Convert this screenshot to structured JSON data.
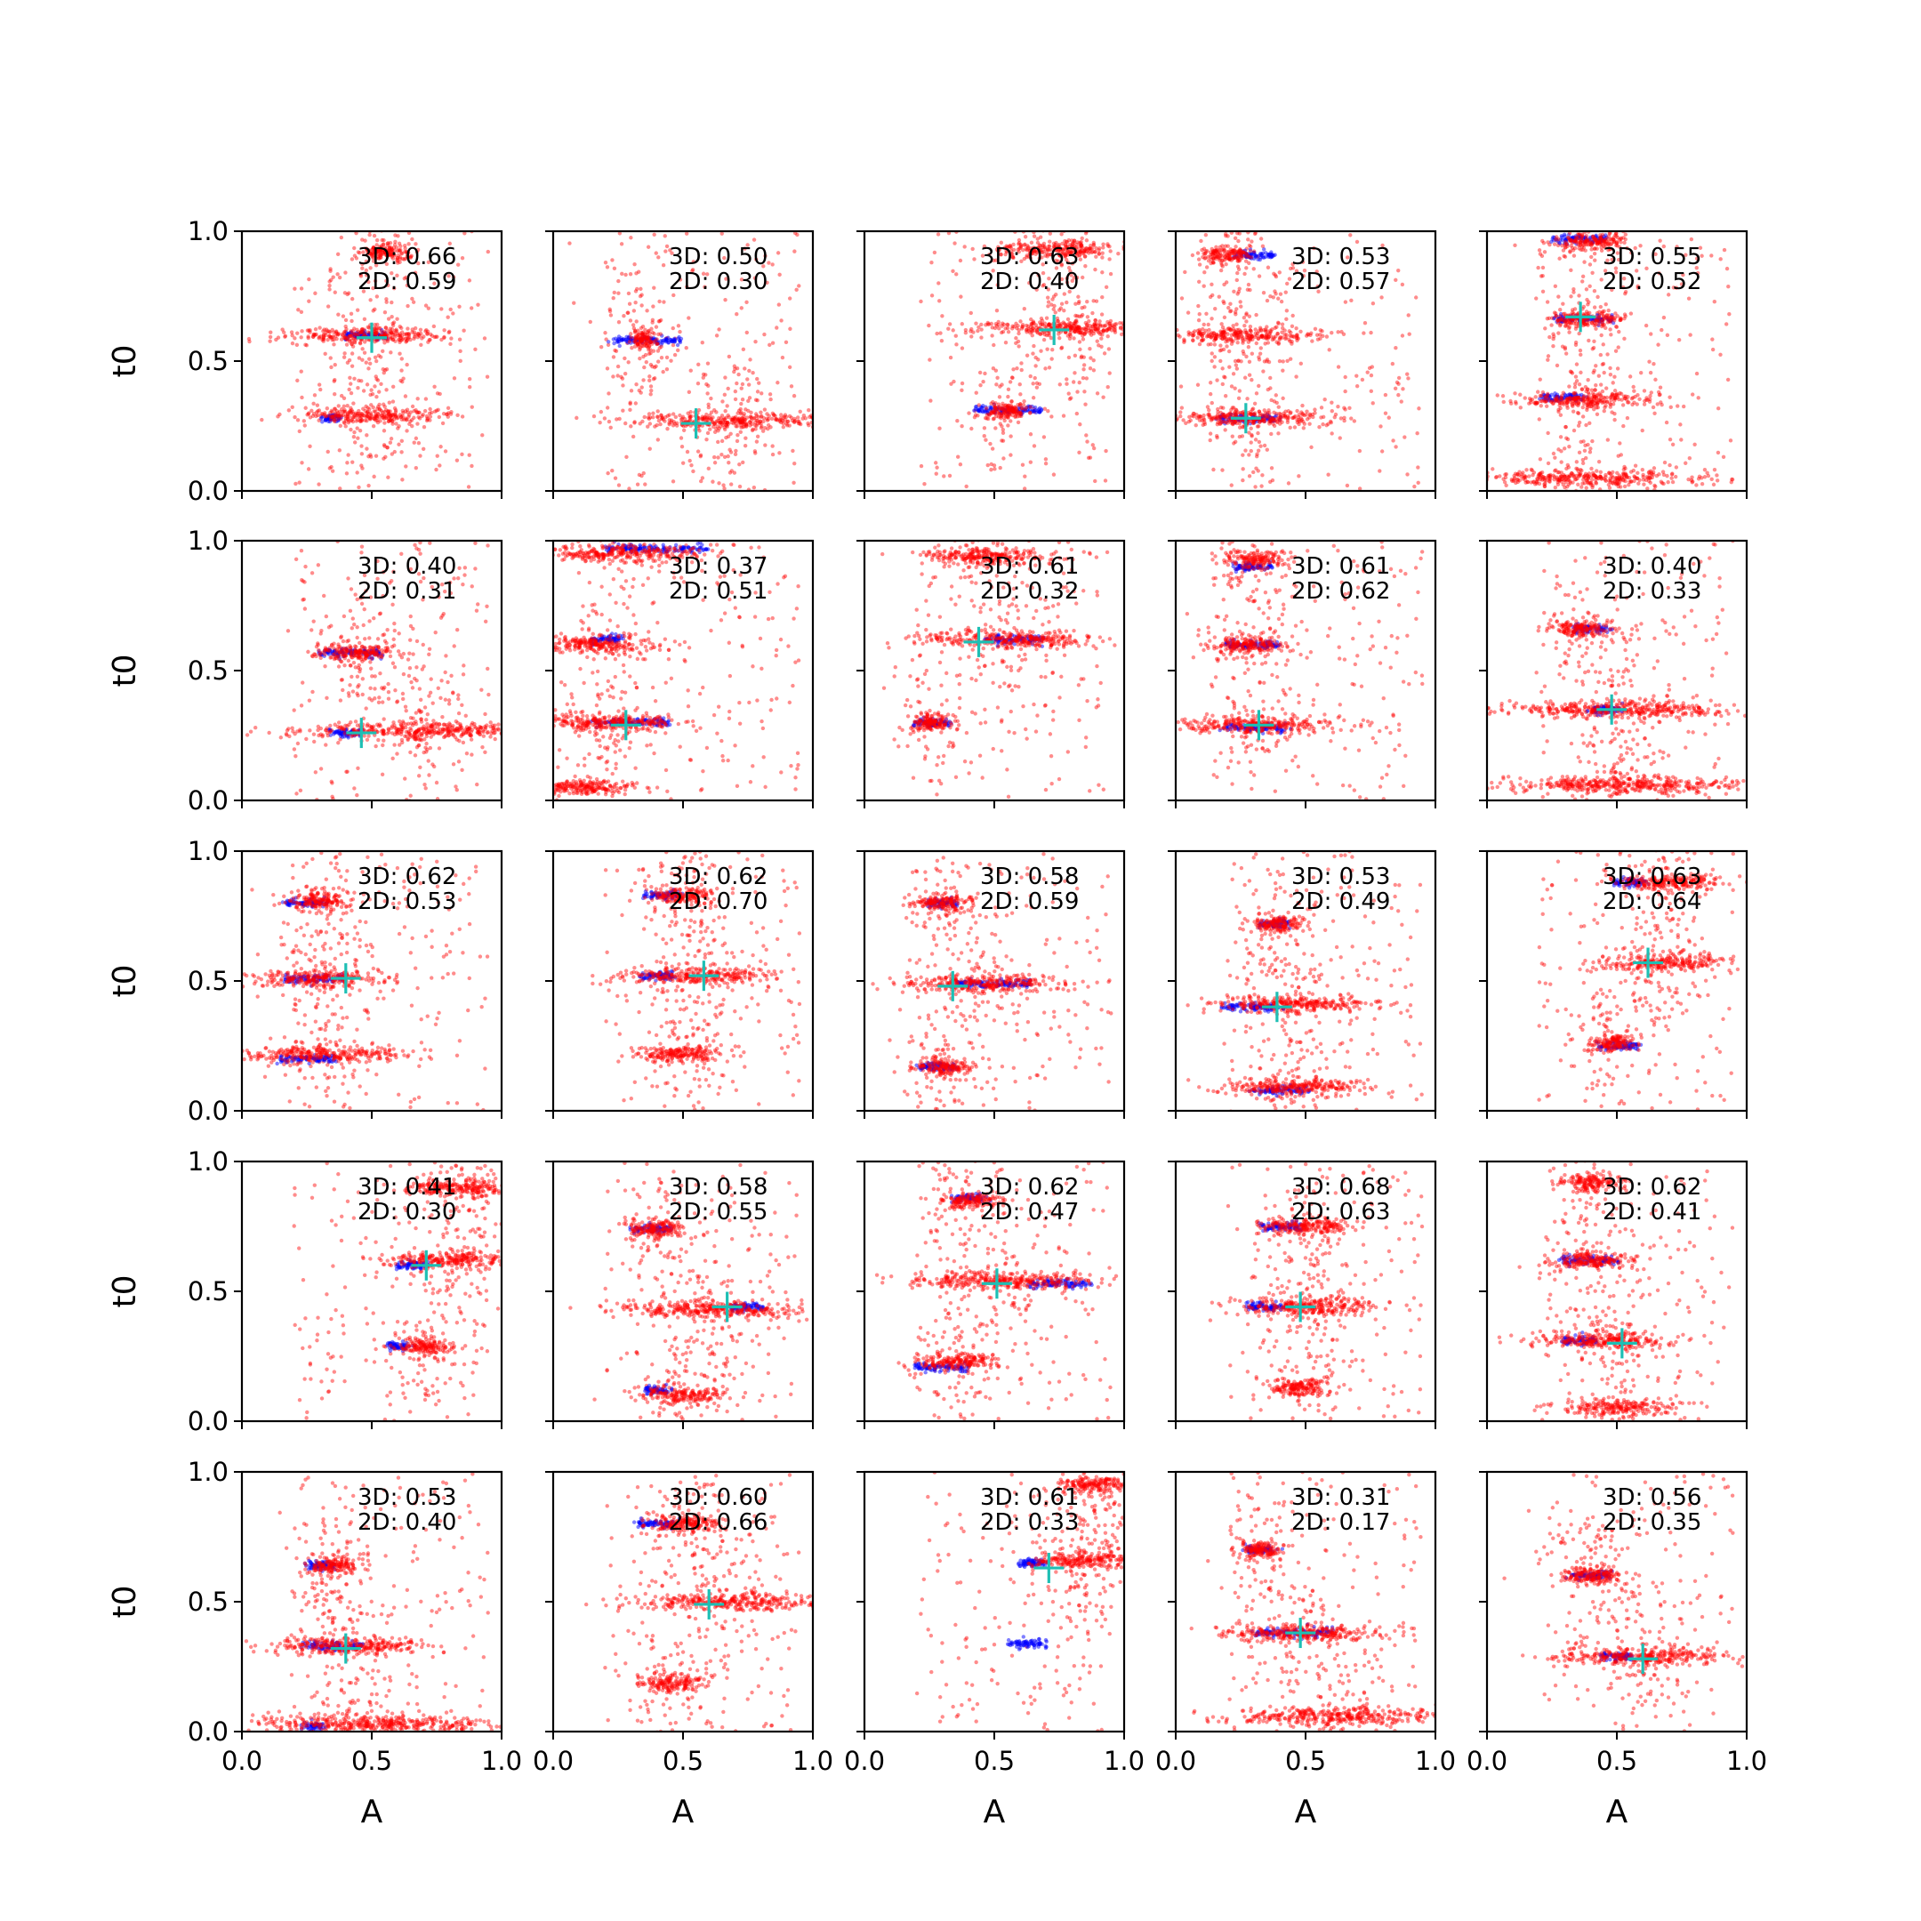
{
  "figure": {
    "rows": 5,
    "cols": 5,
    "xlabel": "A",
    "ylabel": "t0",
    "xticks": [
      "0.0",
      "0.5",
      "1.0"
    ],
    "yticks": [
      "0.0",
      "0.5",
      "1.0"
    ],
    "colors": {
      "red_points": "#ff0000",
      "blue_points": "#0000ff",
      "marker": "#1ebfb4",
      "axes": "#000000"
    }
  },
  "chart_data": [
    {
      "type": "scatter",
      "panel": 1,
      "annotation": [
        "3D: 0.66",
        "2D: 0.59"
      ],
      "marker": [
        0.5,
        0.59
      ],
      "red_clusters": [
        [
          0.48,
          0.6,
          0.38
        ],
        [
          0.5,
          0.29,
          0.34
        ],
        [
          0.55,
          0.92,
          0.12
        ]
      ],
      "blue_clusters": [
        [
          0.47,
          0.6,
          0.14
        ],
        [
          0.35,
          0.28,
          0.05
        ]
      ],
      "xlim": [
        0,
        1
      ],
      "ylim": [
        0,
        1
      ]
    },
    {
      "type": "scatter",
      "panel": 2,
      "annotation": [
        "3D: 0.50",
        "2D: 0.30"
      ],
      "marker": [
        0.55,
        0.26
      ],
      "red_clusters": [
        [
          0.7,
          0.27,
          0.46
        ],
        [
          0.35,
          0.58,
          0.06
        ]
      ],
      "blue_clusters": [
        [
          0.36,
          0.58,
          0.24
        ]
      ],
      "xlim": [
        0,
        1
      ],
      "ylim": [
        0,
        1
      ]
    },
    {
      "type": "scatter",
      "panel": 3,
      "annotation": [
        "3D: 0.63",
        "2D: 0.40"
      ],
      "marker": [
        0.73,
        0.62
      ],
      "red_clusters": [
        [
          0.78,
          0.63,
          0.44
        ],
        [
          0.75,
          0.93,
          0.28
        ],
        [
          0.55,
          0.31,
          0.1
        ]
      ],
      "blue_clusters": [
        [
          0.55,
          0.31,
          0.24
        ]
      ],
      "xlim": [
        0,
        1
      ],
      "ylim": [
        0,
        1
      ]
    },
    {
      "type": "scatter",
      "panel": 4,
      "annotation": [
        "3D: 0.53",
        "2D: 0.57"
      ],
      "marker": [
        0.27,
        0.28
      ],
      "red_clusters": [
        [
          0.25,
          0.6,
          0.36
        ],
        [
          0.28,
          0.28,
          0.4
        ],
        [
          0.2,
          0.91,
          0.12
        ]
      ],
      "blue_clusters": [
        [
          0.28,
          0.28,
          0.2
        ],
        [
          0.3,
          0.91,
          0.14
        ]
      ],
      "xlim": [
        0,
        1
      ],
      "ylim": [
        0,
        1
      ]
    },
    {
      "type": "scatter",
      "panel": 5,
      "annotation": [
        "3D: 0.55",
        "2D: 0.52"
      ],
      "marker": [
        0.36,
        0.67
      ],
      "red_clusters": [
        [
          0.38,
          0.35,
          0.32
        ],
        [
          0.38,
          0.05,
          0.5
        ],
        [
          0.37,
          0.66,
          0.18
        ],
        [
          0.4,
          0.96,
          0.18
        ]
      ],
      "blue_clusters": [
        [
          0.37,
          0.66,
          0.2
        ],
        [
          0.35,
          0.97,
          0.18
        ],
        [
          0.3,
          0.36,
          0.14
        ]
      ],
      "xlim": [
        0,
        1
      ],
      "ylim": [
        0,
        1
      ]
    },
    {
      "type": "scatter",
      "panel": 6,
      "annotation": [
        "3D: 0.40",
        "2D: 0.31"
      ],
      "marker": [
        0.46,
        0.26
      ],
      "red_clusters": [
        [
          0.68,
          0.27,
          0.58
        ],
        [
          0.45,
          0.57,
          0.18
        ]
      ],
      "blue_clusters": [
        [
          0.42,
          0.57,
          0.22
        ],
        [
          0.4,
          0.26,
          0.1
        ]
      ],
      "xlim": [
        0,
        1
      ],
      "ylim": [
        0,
        1
      ]
    },
    {
      "type": "scatter",
      "panel": 7,
      "annotation": [
        "3D: 0.37",
        "2D: 0.51"
      ],
      "marker": [
        0.28,
        0.29
      ],
      "red_clusters": [
        [
          0.2,
          0.3,
          0.4
        ],
        [
          0.15,
          0.6,
          0.3
        ],
        [
          0.25,
          0.95,
          0.4
        ],
        [
          0.1,
          0.05,
          0.3
        ]
      ],
      "blue_clusters": [
        [
          0.3,
          0.3,
          0.26
        ],
        [
          0.4,
          0.97,
          0.34
        ],
        [
          0.2,
          0.62,
          0.1
        ]
      ],
      "xlim": [
        0,
        1
      ],
      "ylim": [
        0,
        1
      ]
    },
    {
      "type": "scatter",
      "panel": 8,
      "annotation": [
        "3D: 0.61",
        "2D: 0.32"
      ],
      "marker": [
        0.44,
        0.61
      ],
      "red_clusters": [
        [
          0.55,
          0.62,
          0.4
        ],
        [
          0.45,
          0.94,
          0.3
        ],
        [
          0.25,
          0.3,
          0.1
        ]
      ],
      "blue_clusters": [
        [
          0.58,
          0.62,
          0.2
        ],
        [
          0.26,
          0.3,
          0.12
        ]
      ],
      "xlim": [
        0,
        1
      ],
      "ylim": [
        0,
        1
      ]
    },
    {
      "type": "scatter",
      "panel": 9,
      "annotation": [
        "3D: 0.61",
        "2D: 0.62"
      ],
      "marker": [
        0.32,
        0.29
      ],
      "red_clusters": [
        [
          0.3,
          0.29,
          0.4
        ],
        [
          0.27,
          0.6,
          0.18
        ],
        [
          0.3,
          0.93,
          0.14
        ]
      ],
      "blue_clusters": [
        [
          0.3,
          0.28,
          0.22
        ],
        [
          0.3,
          0.6,
          0.18
        ],
        [
          0.3,
          0.9,
          0.14
        ]
      ],
      "xlim": [
        0,
        1
      ],
      "ylim": [
        0,
        1
      ]
    },
    {
      "type": "scatter",
      "panel": 10,
      "annotation": [
        "3D: 0.40",
        "2D: 0.33"
      ],
      "marker": [
        0.48,
        0.35
      ],
      "red_clusters": [
        [
          0.52,
          0.35,
          0.52
        ],
        [
          0.52,
          0.06,
          0.58
        ],
        [
          0.37,
          0.66,
          0.14
        ]
      ],
      "blue_clusters": [
        [
          0.4,
          0.66,
          0.12
        ],
        [
          0.45,
          0.35,
          0.1
        ]
      ],
      "xlim": [
        0,
        1
      ],
      "ylim": [
        0,
        1
      ]
    },
    {
      "type": "scatter",
      "panel": 11,
      "annotation": [
        "3D: 0.62",
        "2D: 0.53"
      ],
      "marker": [
        0.4,
        0.51
      ],
      "red_clusters": [
        [
          0.3,
          0.51,
          0.28
        ],
        [
          0.3,
          0.22,
          0.36
        ],
        [
          0.3,
          0.81,
          0.14
        ]
      ],
      "blue_clusters": [
        [
          0.28,
          0.51,
          0.22
        ],
        [
          0.25,
          0.2,
          0.2
        ],
        [
          0.25,
          0.8,
          0.14
        ]
      ],
      "xlim": [
        0,
        1
      ],
      "ylim": [
        0,
        1
      ]
    },
    {
      "type": "scatter",
      "panel": 12,
      "annotation": [
        "3D: 0.62",
        "2D: 0.70"
      ],
      "marker": [
        0.58,
        0.52
      ],
      "red_clusters": [
        [
          0.55,
          0.52,
          0.36
        ],
        [
          0.5,
          0.22,
          0.2
        ],
        [
          0.5,
          0.83,
          0.14
        ]
      ],
      "blue_clusters": [
        [
          0.4,
          0.52,
          0.12
        ],
        [
          0.42,
          0.83,
          0.12
        ]
      ],
      "xlim": [
        0,
        1
      ],
      "ylim": [
        0,
        1
      ]
    },
    {
      "type": "scatter",
      "panel": 13,
      "annotation": [
        "3D: 0.58",
        "2D: 0.59"
      ],
      "marker": [
        0.34,
        0.48
      ],
      "red_clusters": [
        [
          0.45,
          0.49,
          0.36
        ],
        [
          0.3,
          0.8,
          0.14
        ],
        [
          0.3,
          0.17,
          0.14
        ]
      ],
      "blue_clusters": [
        [
          0.5,
          0.49,
          0.26
        ],
        [
          0.3,
          0.8,
          0.1
        ],
        [
          0.28,
          0.17,
          0.12
        ]
      ],
      "xlim": [
        0,
        1
      ],
      "ylim": [
        0,
        1
      ]
    },
    {
      "type": "scatter",
      "panel": 14,
      "annotation": [
        "3D: 0.53",
        "2D: 0.49"
      ],
      "marker": [
        0.39,
        0.4
      ],
      "red_clusters": [
        [
          0.45,
          0.41,
          0.4
        ],
        [
          0.45,
          0.09,
          0.34
        ],
        [
          0.4,
          0.72,
          0.12
        ]
      ],
      "blue_clusters": [
        [
          0.3,
          0.4,
          0.2
        ],
        [
          0.4,
          0.08,
          0.2
        ],
        [
          0.38,
          0.72,
          0.1
        ]
      ],
      "xlim": [
        0,
        1
      ],
      "ylim": [
        0,
        1
      ]
    },
    {
      "type": "scatter",
      "panel": 15,
      "annotation": [
        "3D: 0.63",
        "2D: 0.64"
      ],
      "marker": [
        0.62,
        0.57
      ],
      "red_clusters": [
        [
          0.68,
          0.57,
          0.3
        ],
        [
          0.7,
          0.88,
          0.28
        ],
        [
          0.48,
          0.26,
          0.1
        ]
      ],
      "blue_clusters": [
        [
          0.5,
          0.25,
          0.14
        ],
        [
          0.55,
          0.88,
          0.1
        ]
      ],
      "xlim": [
        0,
        1
      ],
      "ylim": [
        0,
        1
      ]
    },
    {
      "type": "scatter",
      "panel": 16,
      "annotation": [
        "3D: 0.41",
        "2D: 0.30"
      ],
      "marker": [
        0.71,
        0.6
      ],
      "red_clusters": [
        [
          0.8,
          0.62,
          0.3
        ],
        [
          0.85,
          0.9,
          0.28
        ],
        [
          0.7,
          0.29,
          0.12
        ]
      ],
      "blue_clusters": [
        [
          0.65,
          0.6,
          0.1
        ],
        [
          0.6,
          0.29,
          0.06
        ]
      ],
      "xlim": [
        0,
        1
      ],
      "ylim": [
        0,
        1
      ]
    },
    {
      "type": "scatter",
      "panel": 17,
      "annotation": [
        "3D: 0.58",
        "2D: 0.55"
      ],
      "marker": [
        0.67,
        0.44
      ],
      "red_clusters": [
        [
          0.6,
          0.43,
          0.44
        ],
        [
          0.4,
          0.74,
          0.14
        ],
        [
          0.5,
          0.1,
          0.2
        ]
      ],
      "blue_clusters": [
        [
          0.38,
          0.74,
          0.14
        ],
        [
          0.75,
          0.44,
          0.12
        ],
        [
          0.4,
          0.12,
          0.08
        ]
      ],
      "xlim": [
        0,
        1
      ],
      "ylim": [
        0,
        1
      ]
    },
    {
      "type": "scatter",
      "panel": 18,
      "annotation": [
        "3D: 0.62",
        "2D: 0.47"
      ],
      "marker": [
        0.51,
        0.53
      ],
      "red_clusters": [
        [
          0.55,
          0.54,
          0.46
        ],
        [
          0.35,
          0.23,
          0.2
        ],
        [
          0.4,
          0.85,
          0.14
        ]
      ],
      "blue_clusters": [
        [
          0.75,
          0.53,
          0.2
        ],
        [
          0.3,
          0.21,
          0.18
        ],
        [
          0.4,
          0.86,
          0.1
        ]
      ],
      "xlim": [
        0,
        1
      ],
      "ylim": [
        0,
        1
      ]
    },
    {
      "type": "scatter",
      "panel": 19,
      "annotation": [
        "3D: 0.68",
        "2D: 0.63"
      ],
      "marker": [
        0.48,
        0.44
      ],
      "red_clusters": [
        [
          0.5,
          0.44,
          0.36
        ],
        [
          0.5,
          0.75,
          0.22
        ],
        [
          0.48,
          0.13,
          0.14
        ]
      ],
      "blue_clusters": [
        [
          0.35,
          0.44,
          0.14
        ],
        [
          0.4,
          0.75,
          0.14
        ]
      ],
      "xlim": [
        0,
        1
      ],
      "ylim": [
        0,
        1
      ]
    },
    {
      "type": "scatter",
      "panel": 20,
      "annotation": [
        "3D: 0.62",
        "2D: 0.41"
      ],
      "marker": [
        0.52,
        0.3
      ],
      "red_clusters": [
        [
          0.45,
          0.31,
          0.32
        ],
        [
          0.4,
          0.62,
          0.2
        ],
        [
          0.5,
          0.05,
          0.24
        ],
        [
          0.4,
          0.92,
          0.16
        ]
      ],
      "blue_clusters": [
        [
          0.4,
          0.62,
          0.2
        ],
        [
          0.35,
          0.31,
          0.12
        ]
      ],
      "xlim": [
        0,
        1
      ],
      "ylim": [
        0,
        1
      ]
    },
    {
      "type": "scatter",
      "panel": 21,
      "annotation": [
        "3D: 0.53",
        "2D: 0.40"
      ],
      "marker": [
        0.4,
        0.32
      ],
      "red_clusters": [
        [
          0.4,
          0.33,
          0.38
        ],
        [
          0.5,
          0.03,
          0.6
        ],
        [
          0.35,
          0.64,
          0.12
        ]
      ],
      "blue_clusters": [
        [
          0.35,
          0.33,
          0.2
        ],
        [
          0.3,
          0.64,
          0.1
        ],
        [
          0.28,
          0.02,
          0.06
        ]
      ],
      "xlim": [
        0,
        1
      ],
      "ylim": [
        0,
        1
      ]
    },
    {
      "type": "scatter",
      "panel": 22,
      "annotation": [
        "3D: 0.60",
        "2D: 0.66"
      ],
      "marker": [
        0.6,
        0.49
      ],
      "red_clusters": [
        [
          0.68,
          0.5,
          0.44
        ],
        [
          0.5,
          0.8,
          0.16
        ],
        [
          0.45,
          0.19,
          0.14
        ]
      ],
      "blue_clusters": [
        [
          0.4,
          0.8,
          0.14
        ]
      ],
      "xlim": [
        0,
        1
      ],
      "ylim": [
        0,
        1
      ]
    },
    {
      "type": "scatter",
      "panel": 23,
      "annotation": [
        "3D: 0.61",
        "2D: 0.33"
      ],
      "marker": [
        0.71,
        0.63
      ],
      "red_clusters": [
        [
          0.85,
          0.66,
          0.26
        ],
        [
          0.9,
          0.95,
          0.18
        ]
      ],
      "blue_clusters": [
        [
          0.65,
          0.65,
          0.1
        ],
        [
          0.63,
          0.34,
          0.12
        ]
      ],
      "xlim": [
        0,
        1
      ],
      "ylim": [
        0,
        1
      ]
    },
    {
      "type": "scatter",
      "panel": 24,
      "annotation": [
        "3D: 0.31",
        "2D: 0.17"
      ],
      "marker": [
        0.48,
        0.38
      ],
      "red_clusters": [
        [
          0.5,
          0.38,
          0.4
        ],
        [
          0.6,
          0.06,
          0.5
        ],
        [
          0.32,
          0.7,
          0.1
        ]
      ],
      "blue_clusters": [
        [
          0.45,
          0.38,
          0.26
        ],
        [
          0.32,
          0.7,
          0.1
        ]
      ],
      "xlim": [
        0,
        1
      ],
      "ylim": [
        0,
        1
      ]
    },
    {
      "type": "scatter",
      "panel": 25,
      "annotation": [
        "3D: 0.56",
        "2D: 0.35"
      ],
      "marker": [
        0.6,
        0.28
      ],
      "red_clusters": [
        [
          0.62,
          0.29,
          0.4
        ],
        [
          0.4,
          0.6,
          0.14
        ]
      ],
      "blue_clusters": [
        [
          0.4,
          0.6,
          0.14
        ],
        [
          0.5,
          0.29,
          0.1
        ]
      ],
      "xlim": [
        0,
        1
      ],
      "ylim": [
        0,
        1
      ]
    }
  ]
}
